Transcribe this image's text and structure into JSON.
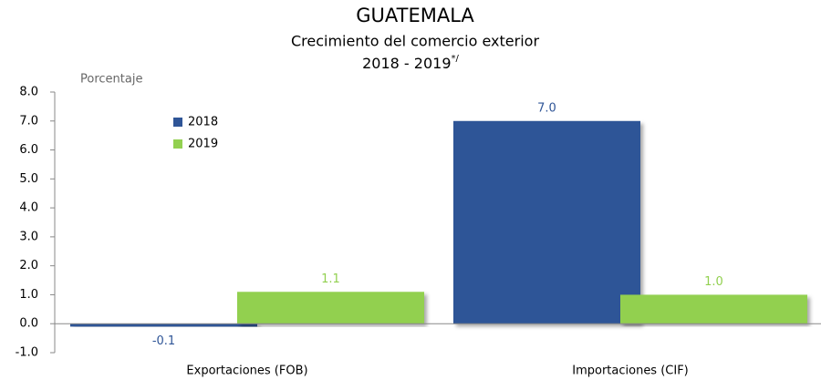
{
  "chart_data": {
    "type": "bar",
    "title": "GUATEMALA",
    "subtitle": "Crecimiento del comercio exterior",
    "period": "2018 - 2019",
    "period_note": "*/",
    "y_label": "Porcentaje",
    "categories": [
      "Exportaciones (FOB)",
      "Importaciones (CIF)"
    ],
    "series": [
      {
        "name": "2018",
        "color": "#2f5597",
        "values": [
          -0.1,
          7.0
        ],
        "value_labels": [
          "-0.1",
          "7.0"
        ]
      },
      {
        "name": "2019",
        "color": "#92d050",
        "values": [
          1.1,
          1.0
        ],
        "value_labels": [
          "1.1",
          "1.0"
        ]
      }
    ],
    "ylim": [
      -1,
      8
    ],
    "yticks": [
      {
        "value": -1,
        "label": "-1.0"
      },
      {
        "value": 0,
        "label": "0.0"
      },
      {
        "value": 1,
        "label": "1.0"
      },
      {
        "value": 2,
        "label": "2.0"
      },
      {
        "value": 3,
        "label": "3.0"
      },
      {
        "value": 4,
        "label": "4.0"
      },
      {
        "value": 5,
        "label": "5.0"
      },
      {
        "value": 6,
        "label": "6.0"
      },
      {
        "value": 7,
        "label": "7.0"
      },
      {
        "value": 8,
        "label": "8.0"
      }
    ],
    "legend": "upper left",
    "grid": false
  }
}
